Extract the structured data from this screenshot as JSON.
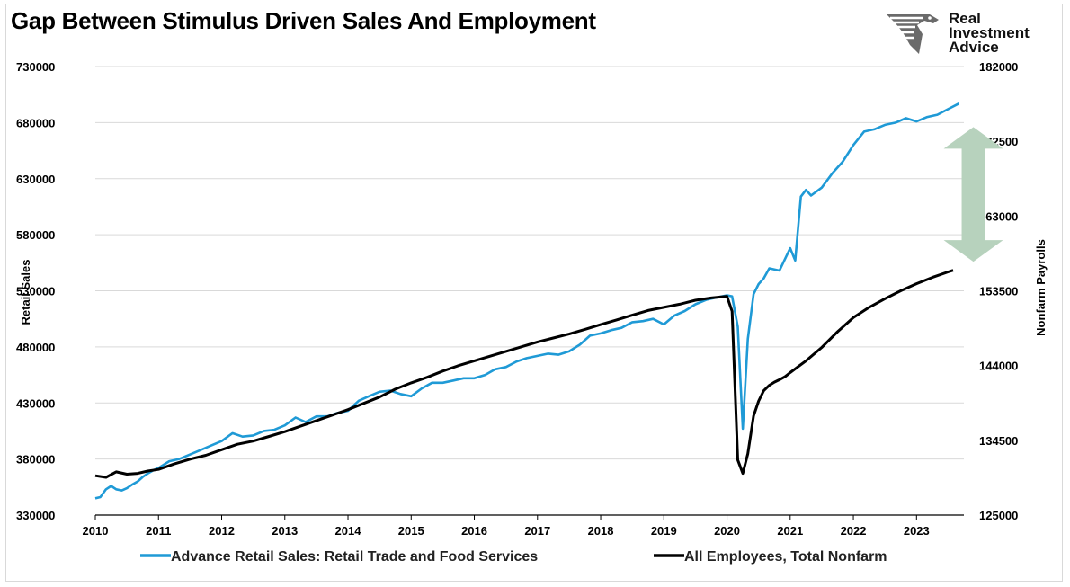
{
  "chart_data": {
    "type": "line",
    "title": "Gap Between Stimulus Driven Sales And Employment",
    "y_left_label": "Retail Sales",
    "y_right_label": "Nonfarm Payrolls",
    "y_left_ticks": [
      "730000",
      "680000",
      "630000",
      "580000",
      "530000",
      "480000",
      "430000",
      "380000",
      "330000"
    ],
    "y_right_ticks": [
      "182000",
      "172500",
      "163000",
      "153500",
      "144000",
      "134500",
      "125000"
    ],
    "x_ticks": [
      "2010",
      "2011",
      "2012",
      "2013",
      "2014",
      "2015",
      "2016",
      "2017",
      "2018",
      "2019",
      "2020",
      "2021",
      "2022",
      "2023"
    ],
    "y_left_range": [
      330000,
      730000
    ],
    "y_right_range": [
      125000,
      182000
    ],
    "x_range": [
      2010,
      2023.75
    ],
    "grid": "horizontal",
    "legend_position": "bottom",
    "series": [
      {
        "name": "Advance Retail Sales: Retail Trade and Food Services",
        "axis": "left",
        "color": "#1f9ad6",
        "x": [
          2010.0,
          2010.08,
          2010.17,
          2010.25,
          2010.33,
          2010.42,
          2010.5,
          2010.58,
          2010.67,
          2010.75,
          2010.83,
          2010.92,
          2011.0,
          2011.17,
          2011.33,
          2011.5,
          2011.67,
          2011.83,
          2012.0,
          2012.17,
          2012.33,
          2012.5,
          2012.67,
          2012.83,
          2013.0,
          2013.17,
          2013.33,
          2013.5,
          2013.67,
          2013.83,
          2014.0,
          2014.17,
          2014.33,
          2014.5,
          2014.67,
          2014.83,
          2015.0,
          2015.17,
          2015.33,
          2015.5,
          2015.67,
          2015.83,
          2016.0,
          2016.17,
          2016.33,
          2016.5,
          2016.67,
          2016.83,
          2017.0,
          2017.17,
          2017.33,
          2017.5,
          2017.67,
          2017.83,
          2018.0,
          2018.17,
          2018.33,
          2018.5,
          2018.67,
          2018.83,
          2019.0,
          2019.17,
          2019.33,
          2019.5,
          2019.67,
          2019.83,
          2020.0,
          2020.08,
          2020.17,
          2020.25,
          2020.33,
          2020.42,
          2020.5,
          2020.58,
          2020.67,
          2020.83,
          2021.0,
          2021.08,
          2021.17,
          2021.25,
          2021.33,
          2021.5,
          2021.67,
          2021.83,
          2022.0,
          2022.17,
          2022.33,
          2022.5,
          2022.67,
          2022.83,
          2023.0,
          2023.17,
          2023.33,
          2023.5,
          2023.67
        ],
        "values": [
          345000,
          346000,
          353000,
          356000,
          353000,
          352000,
          354000,
          357000,
          360000,
          364000,
          367000,
          370000,
          372000,
          378000,
          380000,
          384000,
          388000,
          392000,
          396000,
          403000,
          400000,
          401000,
          405000,
          406000,
          410000,
          417000,
          413000,
          418000,
          418000,
          421000,
          423000,
          432000,
          436000,
          440000,
          441000,
          438000,
          436000,
          443000,
          448000,
          448000,
          450000,
          452000,
          452000,
          455000,
          460000,
          462000,
          467000,
          470000,
          472000,
          474000,
          473000,
          476000,
          482000,
          490000,
          492000,
          495000,
          497000,
          502000,
          503000,
          505000,
          500000,
          508000,
          512000,
          518000,
          522000,
          524000,
          526000,
          525000,
          498000,
          407000,
          487000,
          527000,
          536000,
          541000,
          550000,
          548000,
          568000,
          557000,
          614000,
          620000,
          615000,
          622000,
          635000,
          645000,
          660000,
          672000,
          674000,
          678000,
          680000,
          684000,
          681000,
          685000,
          687000,
          692000,
          697000
        ]
      },
      {
        "name": "All Employees, Total Nonfarm",
        "axis": "right",
        "color": "#000000",
        "x": [
          2010.0,
          2010.17,
          2010.33,
          2010.5,
          2010.67,
          2010.83,
          2011.0,
          2011.25,
          2011.5,
          2011.75,
          2012.0,
          2012.25,
          2012.5,
          2012.75,
          2013.0,
          2013.25,
          2013.5,
          2013.75,
          2014.0,
          2014.25,
          2014.5,
          2014.75,
          2015.0,
          2015.25,
          2015.5,
          2015.75,
          2016.0,
          2016.25,
          2016.5,
          2016.75,
          2017.0,
          2017.25,
          2017.5,
          2017.75,
          2018.0,
          2018.25,
          2018.5,
          2018.75,
          2019.0,
          2019.25,
          2019.5,
          2019.75,
          2020.0,
          2020.08,
          2020.17,
          2020.25,
          2020.33,
          2020.42,
          2020.5,
          2020.58,
          2020.67,
          2020.75,
          2020.83,
          2020.92,
          2021.0,
          2021.25,
          2021.5,
          2021.75,
          2022.0,
          2022.25,
          2022.5,
          2022.75,
          2023.0,
          2023.25,
          2023.5,
          2023.58
        ],
        "values": [
          130000,
          129800,
          130500,
          130200,
          130300,
          130600,
          130800,
          131500,
          132100,
          132600,
          133300,
          134000,
          134400,
          135000,
          135600,
          136300,
          137000,
          137700,
          138400,
          139200,
          140000,
          141000,
          141800,
          142500,
          143300,
          144000,
          144600,
          145200,
          145800,
          146400,
          147000,
          147500,
          148000,
          148600,
          149200,
          149800,
          150400,
          151000,
          151400,
          151800,
          152300,
          152600,
          152800,
          150900,
          132000,
          130300,
          132800,
          137600,
          139500,
          140800,
          141500,
          141900,
          142200,
          142600,
          143100,
          144600,
          146300,
          148300,
          150100,
          151400,
          152500,
          153500,
          154400,
          155200,
          155900,
          156100
        ]
      }
    ],
    "annotations": [
      {
        "type": "double-arrow",
        "label": "",
        "color": "#b7d2bd",
        "x": 2023.9,
        "y_from": 676000,
        "y_to": 556000
      }
    ]
  }
}
